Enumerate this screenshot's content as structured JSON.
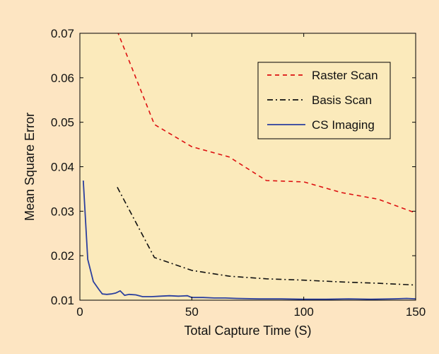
{
  "chart_data": {
    "type": "line",
    "xlabel": "Total Capture Time (S)",
    "ylabel": "Mean Square Error",
    "xlim": [
      0,
      150
    ],
    "ylim": [
      0.01,
      0.07
    ],
    "xticks": [
      "0",
      "50",
      "100",
      "150"
    ],
    "yticks": [
      "0.01",
      "0.02",
      "0.03",
      "0.04",
      "0.05",
      "0.06",
      "0.07"
    ],
    "grid": false,
    "legend_position": "top-right",
    "plot_background": "#fbeabb",
    "figure_background": "#fde5c2",
    "series": [
      {
        "name": "Raster Scan",
        "color": "#dd1111",
        "style": "dashed",
        "x": [
          16.7,
          33.3,
          50,
          66.7,
          83.3,
          100,
          116.7,
          133.3,
          150
        ],
        "y": [
          0.0705,
          0.0495,
          0.0445,
          0.0422,
          0.0369,
          0.0366,
          0.0342,
          0.0327,
          0.0296
        ]
      },
      {
        "name": "Basis Scan",
        "color": "#111111",
        "style": "dashdot",
        "x": [
          16.7,
          33.3,
          50,
          66.7,
          83.3,
          100,
          116.7,
          133.3,
          150
        ],
        "y": [
          0.0354,
          0.0196,
          0.0167,
          0.0154,
          0.0148,
          0.0145,
          0.0141,
          0.0138,
          0.0134
        ]
      },
      {
        "name": "CS Imaging",
        "color": "#2b3f9e",
        "style": "solid",
        "x": [
          1.5,
          3.5,
          6,
          8.5,
          10,
          12,
          14,
          16,
          18,
          20,
          22,
          25,
          28,
          32,
          36,
          40,
          44,
          48,
          50,
          55,
          60,
          65,
          70,
          80,
          90,
          100,
          110,
          120,
          130,
          140,
          146,
          150
        ],
        "y": [
          0.0369,
          0.0192,
          0.0142,
          0.0124,
          0.0114,
          0.0113,
          0.0114,
          0.0116,
          0.0121,
          0.0111,
          0.0113,
          0.0112,
          0.0108,
          0.0108,
          0.0109,
          0.011,
          0.0109,
          0.011,
          0.0106,
          0.0106,
          0.0105,
          0.0105,
          0.0104,
          0.0103,
          0.0103,
          0.0102,
          0.0102,
          0.0103,
          0.0102,
          0.0103,
          0.0104,
          0.0103
        ]
      }
    ]
  }
}
